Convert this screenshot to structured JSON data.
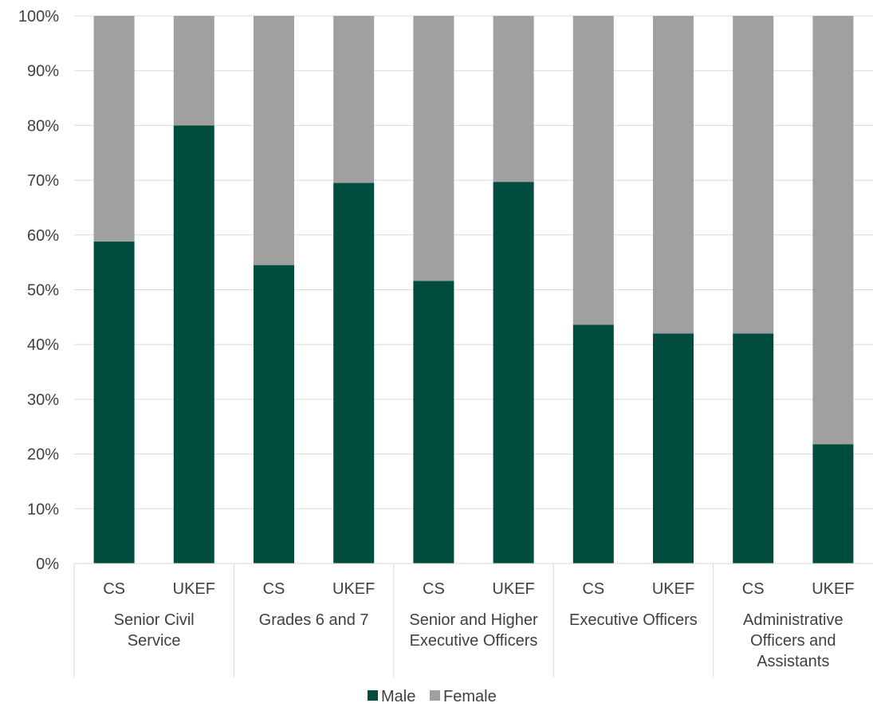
{
  "chart_data": {
    "type": "bar",
    "stacked": true,
    "groups": [
      {
        "label": [
          "Senior Civil",
          "Service"
        ],
        "categories": [
          "CS",
          "UKEF"
        ]
      },
      {
        "label": [
          "Grades 6 and 7"
        ],
        "categories": [
          "CS",
          "UKEF"
        ]
      },
      {
        "label": [
          "Senior and Higher",
          "Executive Officers"
        ],
        "categories": [
          "CS",
          "UKEF"
        ]
      },
      {
        "label": [
          "Executive Officers"
        ],
        "categories": [
          "CS",
          "UKEF"
        ]
      },
      {
        "label": [
          "Administrative",
          "Officers and",
          "Assistants"
        ],
        "categories": [
          "CS",
          "UKEF"
        ]
      }
    ],
    "series": [
      {
        "name": "Male",
        "color": "#004D40",
        "values": [
          58.8,
          80.0,
          54.5,
          69.5,
          51.6,
          69.7,
          43.6,
          42.0,
          42.0,
          21.8
        ]
      },
      {
        "name": "Female",
        "color": "#A0A0A0",
        "values": [
          41.2,
          20.0,
          45.5,
          30.5,
          48.4,
          30.3,
          56.4,
          58.0,
          58.0,
          78.2
        ]
      }
    ],
    "ylim": [
      0,
      100
    ],
    "yticks": [
      "0%",
      "10%",
      "20%",
      "30%",
      "40%",
      "50%",
      "60%",
      "70%",
      "80%",
      "90%",
      "100%"
    ],
    "grid": true,
    "legend_position": "bottom"
  }
}
